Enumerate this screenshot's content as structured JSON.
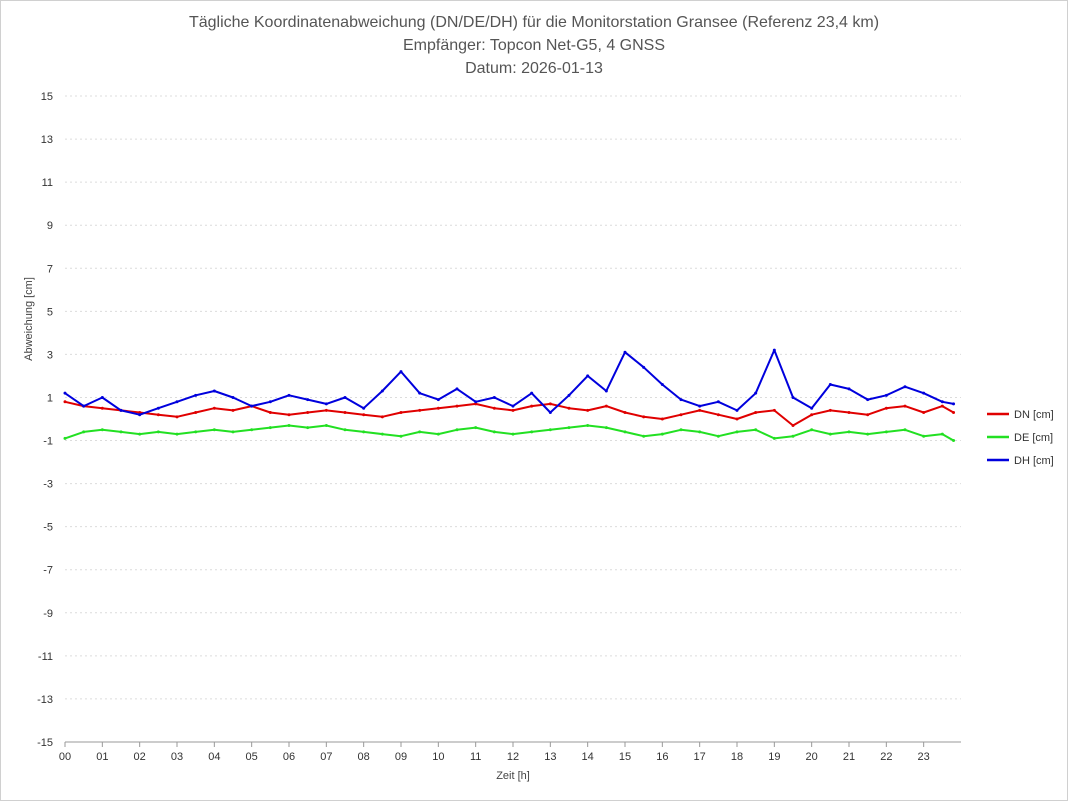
{
  "chart_data": {
    "type": "line",
    "title": "Tägliche Koordinatenabweichung (DN/DE/DH) für die Monitorstation Gransee (Referenz 23,4 km)",
    "subtitle": "Empfänger: Topcon Net-G5, 4 GNSS",
    "date_label": "Datum: 2026-01-13",
    "xlabel": "Zeit [h]",
    "ylabel": "Abweichung [cm]",
    "xlim": [
      0,
      24
    ],
    "ylim": [
      -15,
      15
    ],
    "x_ticks": [
      "00",
      "01",
      "02",
      "03",
      "04",
      "05",
      "06",
      "07",
      "08",
      "09",
      "10",
      "11",
      "12",
      "13",
      "14",
      "15",
      "16",
      "17",
      "18",
      "19",
      "20",
      "21",
      "22",
      "23"
    ],
    "y_ticks": [
      "15",
      "13",
      "11",
      "9",
      "7",
      "5",
      "3",
      "1",
      "-1",
      "-3",
      "-5",
      "-7",
      "-9",
      "-11",
      "-13",
      "-15"
    ],
    "grid": true,
    "legend_position": "right",
    "x": [
      0,
      0.5,
      1,
      1.5,
      2,
      2.5,
      3,
      3.5,
      4,
      4.5,
      5,
      5.5,
      6,
      6.5,
      7,
      7.5,
      8,
      8.5,
      9,
      9.5,
      10,
      10.5,
      11,
      11.5,
      12,
      12.5,
      13,
      13.5,
      14,
      14.5,
      15,
      15.5,
      16,
      16.5,
      17,
      17.5,
      18,
      18.5,
      19,
      19.5,
      20,
      20.5,
      21,
      21.5,
      22,
      22.5,
      23,
      23.5,
      23.8
    ],
    "series": [
      {
        "name": "DN [cm]",
        "color": "#e00000",
        "values": [
          0.8,
          0.6,
          0.5,
          0.4,
          0.3,
          0.2,
          0.1,
          0.3,
          0.5,
          0.4,
          0.6,
          0.3,
          0.2,
          0.3,
          0.4,
          0.3,
          0.2,
          0.1,
          0.3,
          0.4,
          0.5,
          0.6,
          0.7,
          0.5,
          0.4,
          0.6,
          0.7,
          0.5,
          0.4,
          0.6,
          0.3,
          0.1,
          0.0,
          0.2,
          0.4,
          0.2,
          0.0,
          0.3,
          0.4,
          -0.3,
          0.2,
          0.4,
          0.3,
          0.2,
          0.5,
          0.6,
          0.3,
          0.6,
          0.3
        ]
      },
      {
        "name": "DE [cm]",
        "color": "#22e022",
        "values": [
          -0.9,
          -0.6,
          -0.5,
          -0.6,
          -0.7,
          -0.6,
          -0.7,
          -0.6,
          -0.5,
          -0.6,
          -0.5,
          -0.4,
          -0.3,
          -0.4,
          -0.3,
          -0.5,
          -0.6,
          -0.7,
          -0.8,
          -0.6,
          -0.7,
          -0.5,
          -0.4,
          -0.6,
          -0.7,
          -0.6,
          -0.5,
          -0.4,
          -0.3,
          -0.4,
          -0.6,
          -0.8,
          -0.7,
          -0.5,
          -0.6,
          -0.8,
          -0.6,
          -0.5,
          -0.9,
          -0.8,
          -0.5,
          -0.7,
          -0.6,
          -0.7,
          -0.6,
          -0.5,
          -0.8,
          -0.7,
          -1.0
        ]
      },
      {
        "name": "DH [cm]",
        "color": "#0000dd",
        "values": [
          1.2,
          0.6,
          1.0,
          0.4,
          0.2,
          0.5,
          0.8,
          1.1,
          1.3,
          1.0,
          0.6,
          0.8,
          1.1,
          0.9,
          0.7,
          1.0,
          0.5,
          1.3,
          2.2,
          1.2,
          0.9,
          1.4,
          0.8,
          1.0,
          0.6,
          1.2,
          0.3,
          1.1,
          2.0,
          1.3,
          3.1,
          2.4,
          1.6,
          0.9,
          0.6,
          0.8,
          0.4,
          1.2,
          3.2,
          1.0,
          0.5,
          1.6,
          1.4,
          0.9,
          1.1,
          1.5,
          1.2,
          0.8,
          0.7
        ]
      }
    ]
  }
}
